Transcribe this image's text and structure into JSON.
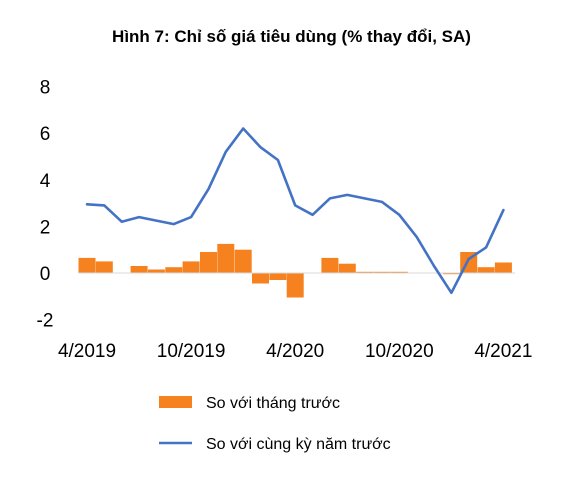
{
  "chart_data": {
    "type": "bar+line",
    "title": "Hình 7: Chỉ số giá tiêu dùng (% thay đổi, SA)",
    "xlabel": "",
    "ylabel": "",
    "ylim": [
      -2,
      8
    ],
    "y_ticks": [
      "8",
      "6",
      "4",
      "2",
      "0",
      "-2"
    ],
    "x_tick_labels": [
      {
        "label": "4/2019",
        "month": "2019-04"
      },
      {
        "label": "10/2019",
        "month": "2019-10"
      },
      {
        "label": "4/2020",
        "month": "2020-04"
      },
      {
        "label": "10/2020",
        "month": "2020-10"
      },
      {
        "label": "4/2021",
        "month": "2021-04"
      }
    ],
    "months": [
      "2019-04",
      "2019-05",
      "2019-06",
      "2019-07",
      "2019-08",
      "2019-09",
      "2019-10",
      "2019-11",
      "2019-12",
      "2020-01",
      "2020-02",
      "2020-03",
      "2020-04",
      "2020-05",
      "2020-06",
      "2020-07",
      "2020-08",
      "2020-09",
      "2020-10",
      "2020-11",
      "2020-12",
      "2021-01",
      "2021-02",
      "2021-03",
      "2021-04",
      "2021-05"
    ],
    "series": [
      {
        "name": "So với tháng trước",
        "kind": "bar",
        "color": "#F5821F",
        "values": [
          0.65,
          0.5,
          0.0,
          0.3,
          0.15,
          0.25,
          0.5,
          0.9,
          1.25,
          1.0,
          -0.45,
          -0.3,
          -1.05,
          0.0,
          0.65,
          0.4,
          0.05,
          0.05,
          0.05,
          0.0,
          0.0,
          -0.05,
          0.9,
          0.25,
          0.45,
          0.0
        ]
      },
      {
        "name": "So với cùng kỳ năm trước",
        "kind": "line",
        "color": "#4472C4",
        "values": [
          2.95,
          2.9,
          2.2,
          2.4,
          2.25,
          2.1,
          2.4,
          3.6,
          5.2,
          6.2,
          5.4,
          4.85,
          2.9,
          2.5,
          3.2,
          3.35,
          3.2,
          3.05,
          2.5,
          1.55,
          0.3,
          -0.85,
          0.6,
          1.1,
          2.7,
          null
        ]
      }
    ],
    "legend_position": "bottom",
    "grid": false
  }
}
